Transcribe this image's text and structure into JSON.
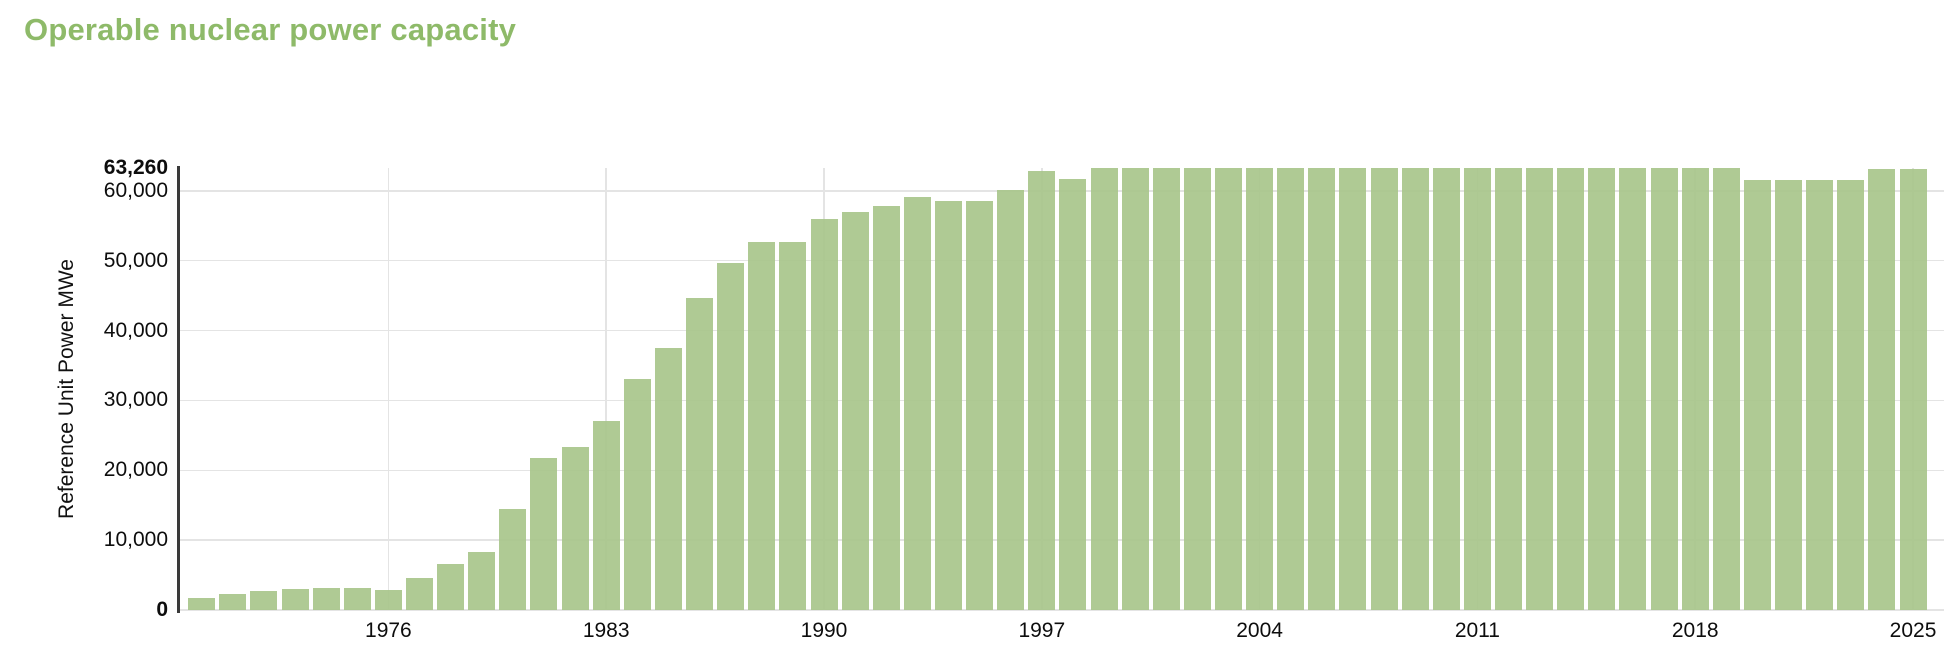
{
  "page": {
    "title": "Operable nuclear power capacity"
  },
  "colors": {
    "title_green": "#8eba69",
    "bar_fill": "#a9c68c",
    "gridline": "#e4e4e4",
    "axis_line": "#3a3a3a",
    "tick_text": "#0d0d0d"
  },
  "y_axis": {
    "label": "Reference Unit Power MWe",
    "ticks": [
      {
        "label": "63,260",
        "value": 63260,
        "bold": true,
        "grid": false
      },
      {
        "label": "60,000",
        "value": 60000,
        "bold": false,
        "grid": true
      },
      {
        "label": "50,000",
        "value": 50000,
        "bold": false,
        "grid": true
      },
      {
        "label": "40,000",
        "value": 40000,
        "bold": false,
        "grid": true
      },
      {
        "label": "30,000",
        "value": 30000,
        "bold": false,
        "grid": true
      },
      {
        "label": "20,000",
        "value": 20000,
        "bold": false,
        "grid": true
      },
      {
        "label": "10,000",
        "value": 10000,
        "bold": false,
        "grid": true
      },
      {
        "label": "0",
        "value": 0,
        "bold": true,
        "grid": true
      }
    ]
  },
  "x_axis": {
    "ticks": [
      {
        "label": "1976",
        "year": 1976
      },
      {
        "label": "1983",
        "year": 1983
      },
      {
        "label": "1990",
        "year": 1990
      },
      {
        "label": "1997",
        "year": 1997
      },
      {
        "label": "2004",
        "year": 2004
      },
      {
        "label": "2011",
        "year": 2011
      },
      {
        "label": "2018",
        "year": 2018
      },
      {
        "label": "2025",
        "year": 2025
      }
    ]
  },
  "chart_data": {
    "type": "bar",
    "title": "Operable nuclear power capacity",
    "xlabel": "",
    "ylabel": "Reference Unit Power MWe",
    "ylim": [
      0,
      63260
    ],
    "grid": "horizontal gridlines every 10,000 plus vertical gridlines at labeled years; gridlines faintly visible through semi-transparent bars",
    "legend_position": "none",
    "bar_color": "#a9c68c",
    "x": [
      1970,
      1971,
      1972,
      1973,
      1974,
      1975,
      1976,
      1977,
      1978,
      1979,
      1980,
      1981,
      1982,
      1983,
      1984,
      1985,
      1986,
      1987,
      1988,
      1989,
      1990,
      1991,
      1992,
      1993,
      1994,
      1995,
      1996,
      1997,
      1998,
      1999,
      2000,
      2001,
      2002,
      2003,
      2004,
      2005,
      2006,
      2007,
      2008,
      2009,
      2010,
      2011,
      2012,
      2013,
      2014,
      2015,
      2016,
      2017,
      2018,
      2019,
      2020,
      2021,
      2022,
      2023,
      2024,
      2025
    ],
    "values": [
      1750,
      2250,
      2700,
      3000,
      3100,
      3100,
      2900,
      4600,
      6550,
      8250,
      14400,
      21700,
      23300,
      27000,
      33000,
      37500,
      44700,
      49600,
      52600,
      52600,
      55900,
      56900,
      57800,
      59100,
      58600,
      58500,
      60100,
      62900,
      61700,
      63260,
      63260,
      63260,
      63260,
      63260,
      63260,
      63260,
      63260,
      63260,
      63260,
      63260,
      63260,
      63260,
      63260,
      63260,
      63260,
      63260,
      63260,
      63260,
      63260,
      63260,
      61500,
      61500,
      61500,
      61500,
      63130,
      63130
    ]
  }
}
